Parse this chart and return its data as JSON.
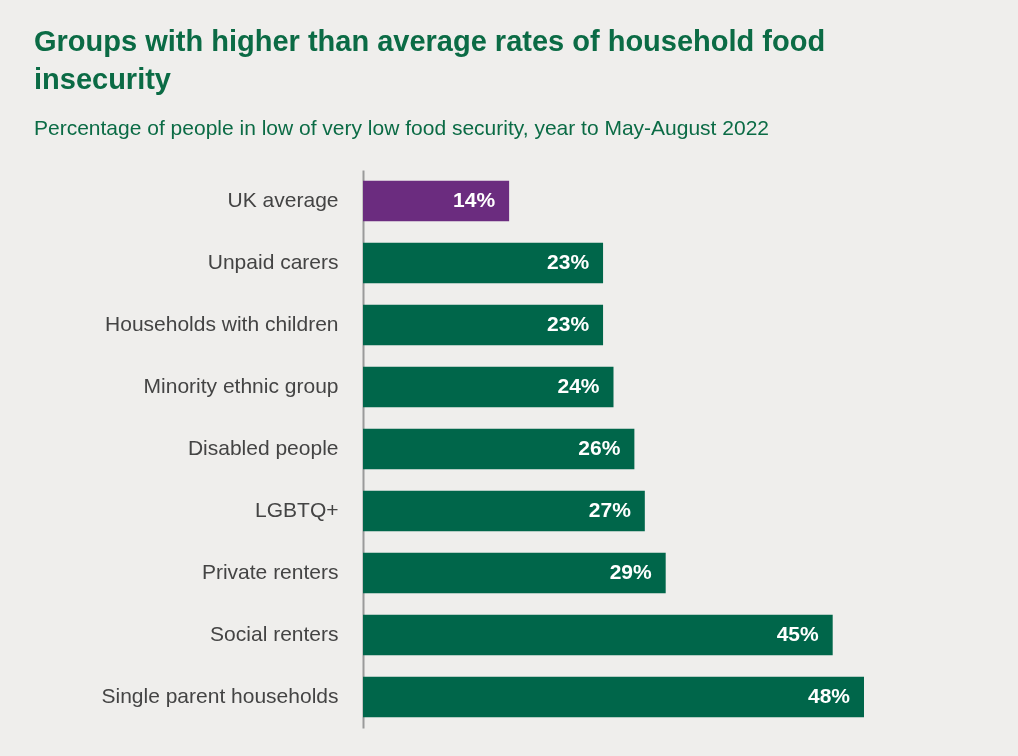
{
  "chart_data": {
    "type": "bar",
    "orientation": "horizontal",
    "title": "Groups with higher than average rates of household food insecurity",
    "subtitle": "Percentage of people in low of very low food security, year to May-August 2022",
    "categories": [
      "UK average",
      "Unpaid carers",
      "Households with children",
      "Minority ethnic group",
      "Disabled people",
      "LGBTQ+",
      "Private renters",
      "Social renters",
      "Single parent households"
    ],
    "values": [
      14,
      23,
      23,
      24,
      26,
      27,
      29,
      45,
      48
    ],
    "value_labels": [
      "14%",
      "23%",
      "23%",
      "24%",
      "26%",
      "27%",
      "29%",
      "45%",
      "48%"
    ],
    "colors": [
      "#6b2c7f",
      "#00664a",
      "#00664a",
      "#00664a",
      "#00664a",
      "#00664a",
      "#00664a",
      "#00664a",
      "#00664a"
    ]
  }
}
